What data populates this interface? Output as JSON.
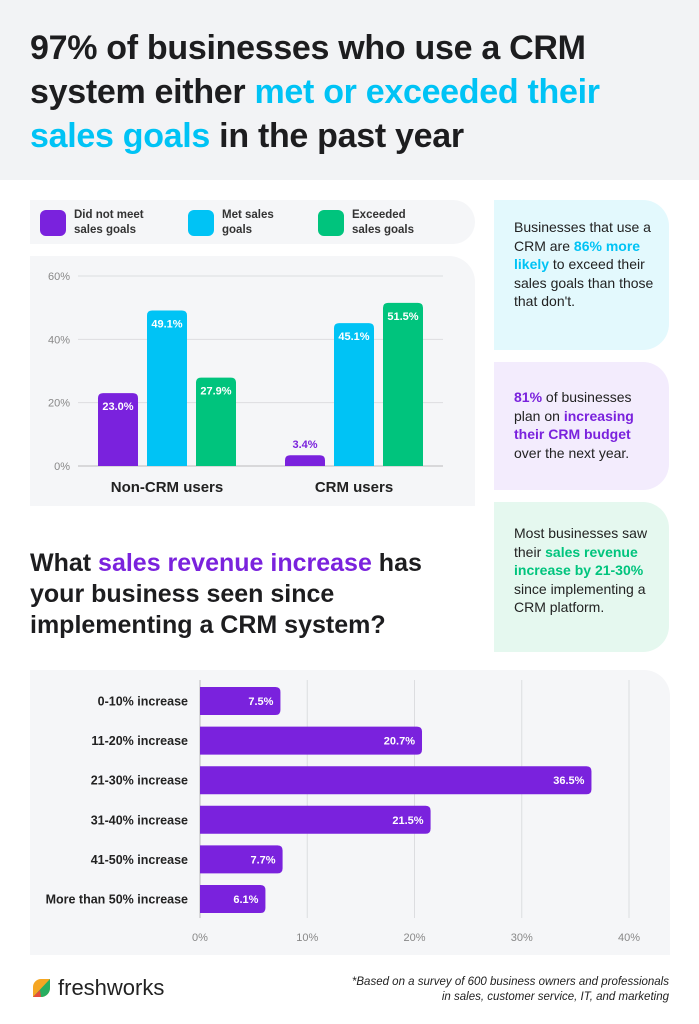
{
  "title": {
    "part1": "97% of businesses who use a CRM system either ",
    "highlight": "met or exceeded their sales goals",
    "part2": " in the past year"
  },
  "colors": {
    "purple": "#7a22dd",
    "cyan": "#00c3f5",
    "green": "#00c47d"
  },
  "cards": [
    {
      "pre": "Businesses that use a CRM are ",
      "hl": "86% more likely",
      "post": " to exceed their sales goals than those that don't."
    },
    {
      "pre": "",
      "hl": "81%",
      "mid": " of businesses plan on ",
      "hl2": "increasing their CRM budget",
      "post": " over the next year."
    },
    {
      "pre": "Most businesses saw their ",
      "hl": "sales revenue increase by 21-30%",
      "post": " since implementing a CRM platform."
    }
  ],
  "question": {
    "pre": "What ",
    "hl": "sales revenue increase",
    "post": " has your business seen since implementing a CRM system?"
  },
  "footer": {
    "logo": "freshworks",
    "note_line1": "*Based on a survey of 600 business owners and professionals",
    "note_line2": "in sales, customer service, IT, and marketing"
  },
  "chart_data": [
    {
      "type": "bar",
      "categories": [
        "Non-CRM users",
        "CRM users"
      ],
      "series": [
        {
          "name": "Did not meet sales goals",
          "values": [
            23.0,
            3.4
          ]
        },
        {
          "name": "Met sales goals",
          "values": [
            49.1,
            45.1
          ]
        },
        {
          "name": "Exceeded sales goals",
          "values": [
            27.9,
            51.5
          ]
        }
      ],
      "yticks": [
        "0%",
        "20%",
        "40%",
        "60%"
      ],
      "ylim": [
        0,
        60
      ],
      "legend": "top",
      "grid": true
    },
    {
      "type": "bar",
      "orientation": "horizontal",
      "categories": [
        "0-10% increase",
        "11-20% increase",
        "21-30% increase",
        "31-40% increase",
        "41-50% increase",
        "More than 50% increase"
      ],
      "values": [
        7.5,
        20.7,
        36.5,
        21.5,
        7.7,
        6.1
      ],
      "xticks": [
        "0%",
        "10%",
        "20%",
        "30%",
        "40%"
      ],
      "xlim": [
        0,
        40
      ],
      "grid": true
    }
  ]
}
